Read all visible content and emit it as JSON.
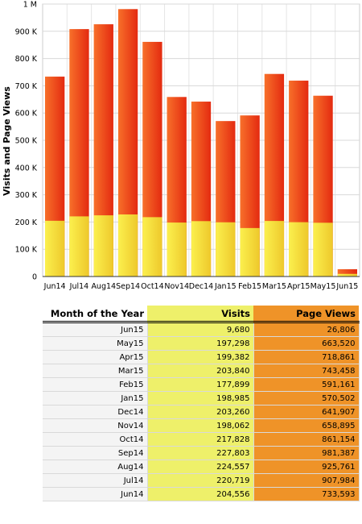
{
  "chart_data": {
    "type": "bar",
    "ylabel": "Visits and Page Views",
    "ylim": [
      0,
      1000000
    ],
    "ytick_labels": [
      "0",
      "100 K",
      "200 K",
      "300 K",
      "400 K",
      "500 K",
      "600 K",
      "700 K",
      "800 K",
      "900 K",
      "1 M"
    ],
    "categories": [
      "Jun14",
      "Jul14",
      "Aug14",
      "Sep14",
      "Oct14",
      "Nov14",
      "Dec14",
      "Jan15",
      "Feb15",
      "Mar15",
      "Apr15",
      "May15",
      "Jun15"
    ],
    "series": [
      {
        "name": "Visits",
        "color": "#f2e23a",
        "values": [
          204556,
          220719,
          224557,
          227803,
          217828,
          198062,
          203260,
          198985,
          177899,
          203840,
          199382,
          197298,
          9680
        ]
      },
      {
        "name": "Page Views",
        "color": "#ec3a12",
        "values": [
          733593,
          907984,
          925761,
          981387,
          861154,
          658895,
          641907,
          570502,
          591161,
          743458,
          718861,
          663520,
          26806
        ]
      }
    ],
    "grid": true
  },
  "table": {
    "headers": [
      "Month of the Year",
      "Visits",
      "Page Views"
    ],
    "rows": [
      [
        "Jun15",
        "9,680",
        "26,806"
      ],
      [
        "May15",
        "197,298",
        "663,520"
      ],
      [
        "Apr15",
        "199,382",
        "718,861"
      ],
      [
        "Mar15",
        "203,840",
        "743,458"
      ],
      [
        "Feb15",
        "177,899",
        "591,161"
      ],
      [
        "Jan15",
        "198,985",
        "570,502"
      ],
      [
        "Dec14",
        "203,260",
        "641,907"
      ],
      [
        "Nov14",
        "198,062",
        "658,895"
      ],
      [
        "Oct14",
        "217,828",
        "861,154"
      ],
      [
        "Sep14",
        "227,803",
        "981,387"
      ],
      [
        "Aug14",
        "224,557",
        "925,761"
      ],
      [
        "Jul14",
        "220,719",
        "907,984"
      ],
      [
        "Jun14",
        "204,556",
        "733,593"
      ]
    ]
  }
}
